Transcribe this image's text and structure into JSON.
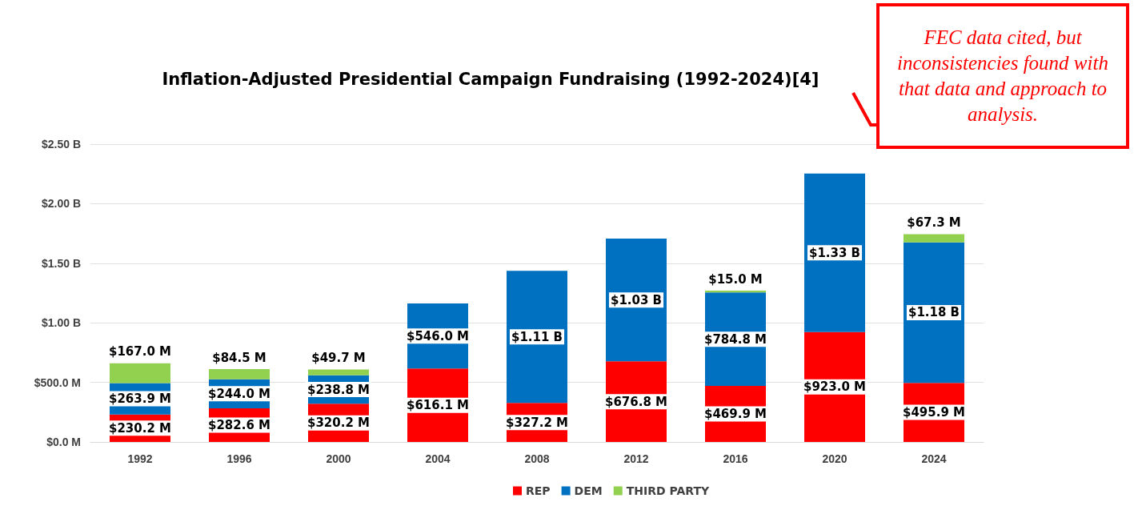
{
  "chart_data": {
    "type": "bar",
    "title": "Inflation-Adjusted Presidential Campaign Fundraising (1992-2024)[4]",
    "annotations": [
      "FEC data cited, but inconsistencies found with that data and approach to analysis."
    ],
    "categories": [
      "1992",
      "1996",
      "2000",
      "2004",
      "2008",
      "2012",
      "2016",
      "2020",
      "2024"
    ],
    "stacked": true,
    "series": [
      {
        "name": "REP",
        "color": "#ff0000",
        "values": [
          230200000,
          282600000,
          320200000,
          616100000,
          327200000,
          676800000,
          469900000,
          923000000,
          495900000
        ],
        "value_labels": [
          "$230.2 M",
          "$282.6 M",
          "$320.2 M",
          "$616.1 M",
          "$327.2 M",
          "$676.8 M",
          "$469.9 M",
          "$923.0 M",
          "$495.9 M"
        ]
      },
      {
        "name": "DEM",
        "color": "#0070c0",
        "values": [
          263900000,
          244000000,
          238800000,
          546000000,
          1110000000,
          1030000000,
          784800000,
          1330000000,
          1180000000
        ],
        "value_labels": [
          "$263.9 M",
          "$244.0 M",
          "$238.8 M",
          "$546.0 M",
          "$1.11 B",
          "$1.03 B",
          "$784.8 M",
          "$1.33 B",
          "$1.18 B"
        ]
      },
      {
        "name": "THIRD PARTY",
        "color": "#92d050",
        "values": [
          167000000,
          84500000,
          49700000,
          null,
          null,
          null,
          15000000,
          null,
          67300000
        ],
        "value_labels": [
          "$167.0 M",
          "$84.5 M",
          "$49.7 M",
          null,
          null,
          null,
          "$15.0 M",
          null,
          "$67.3 M"
        ]
      }
    ],
    "ylim": [
      0,
      2500000000
    ],
    "yticks": [
      {
        "value": 0,
        "label": "$0.0 M"
      },
      {
        "value": 500000000,
        "label": "$500.0 M"
      },
      {
        "value": 1000000000,
        "label": "$1.00 B"
      },
      {
        "value": 1500000000,
        "label": "$1.50 B"
      },
      {
        "value": 2000000000,
        "label": "$2.00 B"
      },
      {
        "value": 2500000000,
        "label": "$2.50 B"
      }
    ],
    "grid": "y",
    "legend": "bottom"
  }
}
